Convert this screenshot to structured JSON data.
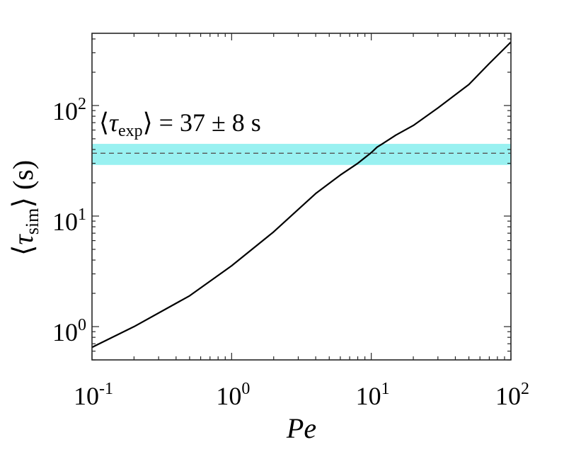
{
  "chart_data": {
    "type": "line",
    "xlabel": "Pe",
    "ylabel": {
      "open": "⟨",
      "symbol": "τ",
      "subscript": "sim",
      "close": "⟩",
      "unit": " (s)"
    },
    "xscale": "log",
    "yscale": "log",
    "xlim": [
      0.1,
      100
    ],
    "ylim": [
      0.5,
      450
    ],
    "x_ticks": [
      {
        "value": 0.1,
        "base": "10",
        "exp": "-1"
      },
      {
        "value": 1,
        "base": "10",
        "exp": "0"
      },
      {
        "value": 10,
        "base": "10",
        "exp": "1"
      },
      {
        "value": 100,
        "base": "10",
        "exp": "2"
      }
    ],
    "y_ticks": [
      {
        "value": 1,
        "base": "10",
        "exp": "0"
      },
      {
        "value": 10,
        "base": "10",
        "exp": "1"
      },
      {
        "value": 100,
        "base": "10",
        "exp": "2"
      }
    ],
    "grid": false,
    "series": [
      {
        "color": "#000000",
        "style": "solid",
        "x": [
          0.1,
          0.2,
          0.5,
          1,
          2,
          3,
          4,
          6,
          8,
          10,
          11,
          12,
          15,
          20,
          30,
          50,
          70,
          100
        ],
        "y": [
          0.65,
          1.0,
          1.9,
          3.55,
          7.2,
          11.5,
          16.0,
          23.5,
          30.0,
          37.5,
          42.0,
          45.0,
          54.0,
          66.0,
          95.0,
          155.0,
          240.0,
          375.0
        ]
      }
    ],
    "annotations": [
      {
        "kind": "band",
        "value": 37,
        "lower": 29,
        "upper": 45,
        "band_color": "#8ef0f0",
        "line_color": "#555555",
        "line_style": "dashed",
        "label": {
          "open": "⟨",
          "symbol": "τ",
          "subscript": "exp",
          "close": "⟩",
          "rest": " = 37 ± 8 s"
        }
      }
    ]
  }
}
